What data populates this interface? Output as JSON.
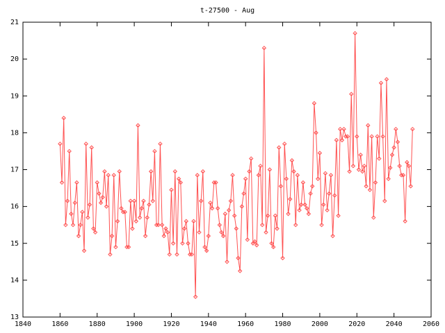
{
  "chart_data": {
    "type": "line",
    "title": "t-27500 - Aug",
    "x": [
      1860,
      1861,
      1862,
      1863,
      1864,
      1865,
      1866,
      1867,
      1868,
      1869,
      1870,
      1871,
      1872,
      1873,
      1874,
      1875,
      1876,
      1877,
      1878,
      1879,
      1880,
      1881,
      1882,
      1883,
      1884,
      1885,
      1886,
      1887,
      1888,
      1889,
      1890,
      1891,
      1892,
      1893,
      1894,
      1895,
      1896,
      1897,
      1898,
      1899,
      1900,
      1901,
      1902,
      1903,
      1904,
      1905,
      1906,
      1907,
      1908,
      1909,
      1910,
      1911,
      1912,
      1913,
      1914,
      1915,
      1916,
      1917,
      1918,
      1919,
      1920,
      1921,
      1922,
      1923,
      1924,
      1925,
      1926,
      1927,
      1928,
      1929,
      1930,
      1931,
      1932,
      1933,
      1934,
      1935,
      1936,
      1937,
      1938,
      1939,
      1940,
      1941,
      1942,
      1943,
      1944,
      1945,
      1946,
      1947,
      1948,
      1949,
      1950,
      1951,
      1952,
      1953,
      1954,
      1955,
      1956,
      1957,
      1958,
      1959,
      1960,
      1961,
      1962,
      1963,
      1964,
      1965,
      1966,
      1967,
      1968,
      1969,
      1970,
      1971,
      1972,
      1973,
      1974,
      1975,
      1976,
      1977,
      1978,
      1979,
      1980,
      1981,
      1982,
      1983,
      1984,
      1985,
      1986,
      1987,
      1988,
      1989,
      1990,
      1991,
      1992,
      1993,
      1994,
      1995,
      1996,
      1997,
      1998,
      1999,
      2000,
      2001,
      2002,
      2003,
      2004,
      2005,
      2006,
      2007,
      2008,
      2009,
      2010,
      2011,
      2012,
      2013,
      2014,
      2015,
      2016,
      2017,
      2018,
      2019,
      2020,
      2021,
      2022,
      2023,
      2024,
      2025,
      2026,
      2027,
      2028,
      2029,
      2030,
      2031,
      2032,
      2033,
      2034,
      2035,
      2036,
      2037,
      2038,
      2039,
      2040,
      2041,
      2042,
      2043,
      2044,
      2045,
      2046,
      2047,
      2048,
      2049,
      2050
    ],
    "series": [
      {
        "color": "#ff5050",
        "values": [
          17.7,
          16.65,
          18.4,
          15.5,
          16.15,
          17.5,
          15.8,
          15.5,
          16.1,
          16.65,
          15.2,
          15.5,
          15.85,
          14.8,
          17.7,
          15.7,
          16.05,
          17.6,
          15.4,
          15.3,
          16.65,
          16.35,
          16.1,
          16.25,
          16.95,
          16.0,
          16.85,
          14.7,
          15.2,
          16.85,
          14.9,
          15.6,
          16.95,
          15.95,
          15.85,
          15.85,
          14.9,
          14.9,
          16.15,
          15.4,
          16.15,
          15.6,
          18.2,
          15.7,
          15.95,
          16.15,
          15.2,
          15.7,
          16.05,
          16.95,
          16.15,
          17.5,
          15.5,
          15.5,
          17.7,
          15.5,
          15.2,
          15.4,
          15.3,
          14.7,
          16.45,
          15.0,
          16.95,
          14.7,
          16.75,
          16.65,
          15.0,
          15.4,
          15.6,
          15.0,
          14.7,
          14.7,
          15.6,
          13.55,
          16.85,
          15.3,
          16.15,
          16.95,
          14.9,
          14.8,
          15.2,
          16.1,
          15.95,
          16.65,
          16.65,
          15.95,
          15.5,
          15.3,
          15.2,
          15.8,
          14.5,
          15.9,
          16.15,
          16.85,
          15.75,
          15.4,
          14.6,
          14.25,
          16.0,
          16.35,
          16.75,
          15.1,
          16.95,
          17.3,
          15.0,
          15.05,
          14.95,
          16.85,
          17.1,
          15.5,
          20.3,
          15.3,
          15.75,
          17.0,
          15.0,
          14.9,
          15.75,
          15.4,
          17.6,
          16.55,
          14.6,
          17.7,
          16.75,
          15.8,
          16.2,
          17.25,
          16.95,
          15.5,
          16.85,
          15.9,
          16.05,
          16.65,
          16.05,
          15.95,
          15.8,
          16.35,
          16.55,
          18.8,
          18.0,
          16.75,
          17.45,
          15.5,
          16.05,
          16.9,
          15.9,
          16.35,
          16.85,
          15.2,
          16.3,
          17.8,
          15.75,
          18.1,
          17.8,
          18.1,
          17.9,
          17.9,
          16.95,
          19.05,
          17.1,
          20.7,
          17.9,
          17.0,
          17.4,
          16.95,
          17.1,
          16.55,
          18.2,
          16.45,
          17.9,
          15.7,
          16.65,
          17.9,
          17.3,
          19.35,
          17.9,
          16.15,
          19.45,
          16.75,
          17.05,
          17.4,
          17.6,
          18.1,
          17.75,
          17.1,
          16.85,
          16.85,
          15.6,
          17.2,
          17.1,
          16.55,
          18.1
        ]
      }
    ],
    "xlim": [
      1840,
      2060
    ],
    "xticks": [
      1840,
      1860,
      1880,
      1900,
      1920,
      1940,
      1960,
      1980,
      2000,
      2020,
      2040,
      2060
    ],
    "ylim": [
      13,
      21
    ],
    "yticks": [
      13,
      14,
      15,
      16,
      17,
      18,
      19,
      20,
      21
    ]
  }
}
